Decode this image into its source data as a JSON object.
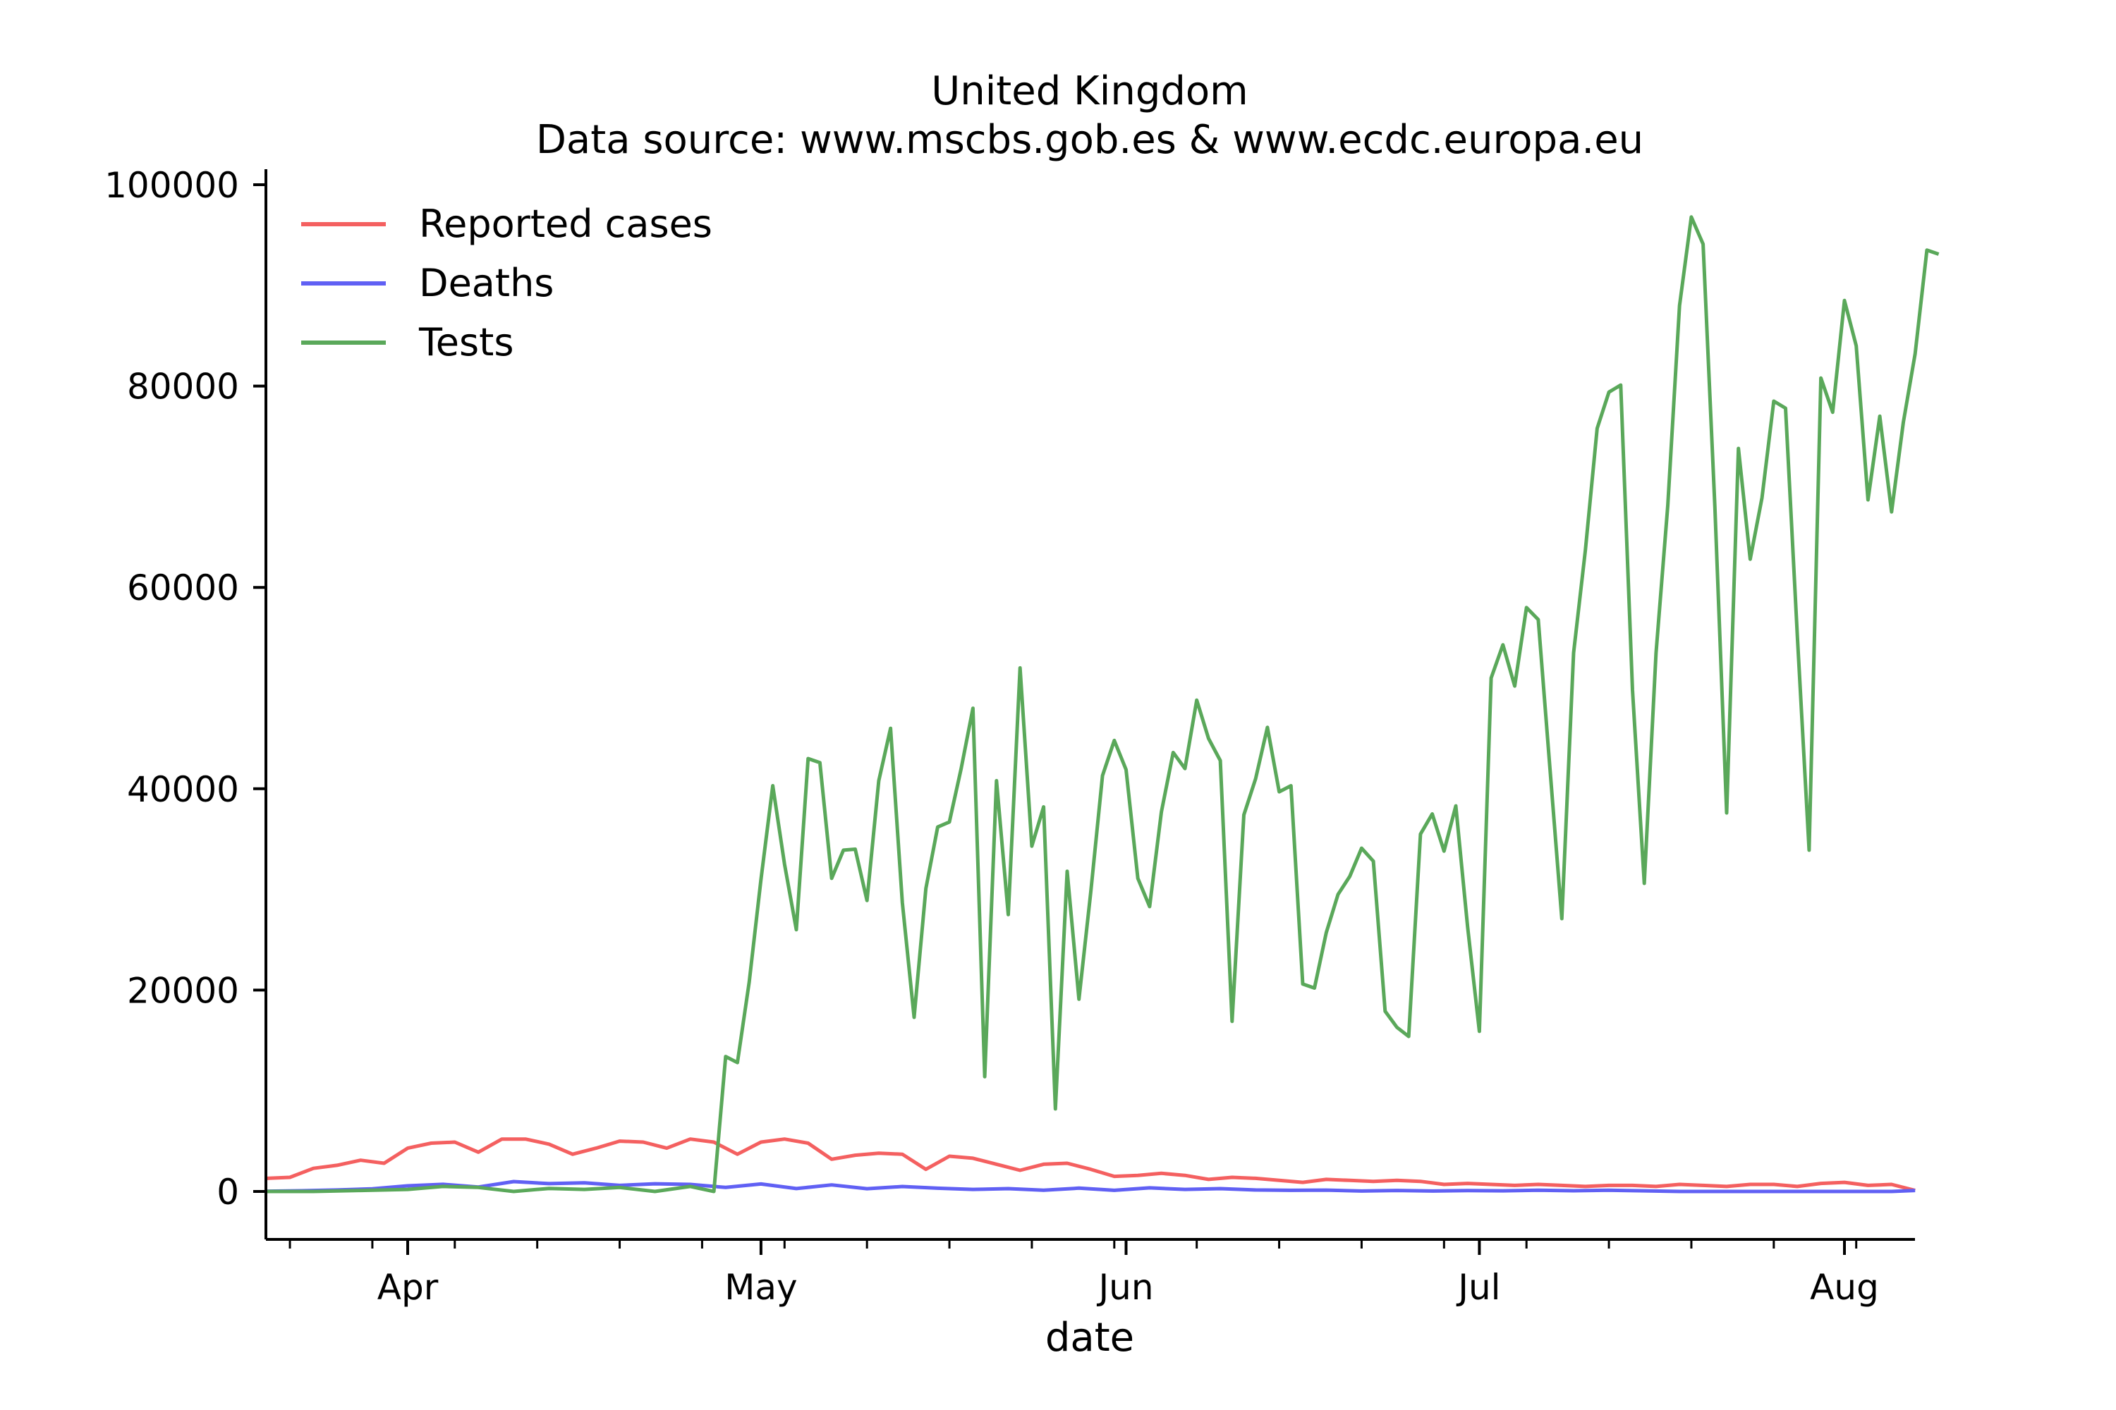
{
  "chart_data": {
    "type": "line",
    "title": "United Kingdom",
    "subtitle": "Data source: www.mscbs.gob.es & www.ecdc.europa.eu",
    "xlabel": "date",
    "ylabel": "",
    "x_tick_labels": [
      "Apr",
      "May",
      "Jun",
      "Jul",
      "Aug"
    ],
    "x_tick_dates": [
      "2020-04-01",
      "2020-05-01",
      "2020-06-01",
      "2020-07-01",
      "2020-08-01"
    ],
    "x_range": [
      "2020-03-20",
      "2020-08-07"
    ],
    "y_ticks": [
      0,
      20000,
      40000,
      60000,
      80000,
      100000
    ],
    "y_tick_labels": [
      "0",
      "20000",
      "40000",
      "60000",
      "80000",
      "100000"
    ],
    "ylim": [
      -5000,
      101000
    ],
    "grid": false,
    "legend_position": "top-left",
    "series": [
      {
        "name": "Reported cases",
        "color": "#f46060",
        "points": [
          [
            "2020-03-20",
            1300
          ],
          [
            "2020-03-22",
            1400
          ],
          [
            "2020-03-24",
            2300
          ],
          [
            "2020-03-26",
            2600
          ],
          [
            "2020-03-28",
            3100
          ],
          [
            "2020-03-30",
            2800
          ],
          [
            "2020-04-01",
            4300
          ],
          [
            "2020-04-03",
            4800
          ],
          [
            "2020-04-05",
            4900
          ],
          [
            "2020-04-07",
            3900
          ],
          [
            "2020-04-09",
            5200
          ],
          [
            "2020-04-11",
            5200
          ],
          [
            "2020-04-13",
            4700
          ],
          [
            "2020-04-15",
            3700
          ],
          [
            "2020-04-17",
            4300
          ],
          [
            "2020-04-19",
            5000
          ],
          [
            "2020-04-21",
            4900
          ],
          [
            "2020-04-23",
            4300
          ],
          [
            "2020-04-25",
            5200
          ],
          [
            "2020-04-27",
            4900
          ],
          [
            "2020-04-29",
            3700
          ],
          [
            "2020-05-01",
            4900
          ],
          [
            "2020-05-03",
            5200
          ],
          [
            "2020-05-05",
            4800
          ],
          [
            "2020-05-07",
            3200
          ],
          [
            "2020-05-09",
            3600
          ],
          [
            "2020-05-11",
            3800
          ],
          [
            "2020-05-13",
            3700
          ],
          [
            "2020-05-15",
            2200
          ],
          [
            "2020-05-17",
            3500
          ],
          [
            "2020-05-19",
            3300
          ],
          [
            "2020-05-21",
            2700
          ],
          [
            "2020-05-23",
            2100
          ],
          [
            "2020-05-25",
            2700
          ],
          [
            "2020-05-27",
            2800
          ],
          [
            "2020-05-29",
            2200
          ],
          [
            "2020-05-31",
            1500
          ],
          [
            "2020-06-02",
            1600
          ],
          [
            "2020-06-04",
            1800
          ],
          [
            "2020-06-06",
            1600
          ],
          [
            "2020-06-08",
            1200
          ],
          [
            "2020-06-10",
            1400
          ],
          [
            "2020-06-12",
            1300
          ],
          [
            "2020-06-14",
            1100
          ],
          [
            "2020-06-16",
            900
          ],
          [
            "2020-06-18",
            1200
          ],
          [
            "2020-06-20",
            1100
          ],
          [
            "2020-06-22",
            1000
          ],
          [
            "2020-06-24",
            1100
          ],
          [
            "2020-06-26",
            1000
          ],
          [
            "2020-06-28",
            700
          ],
          [
            "2020-06-30",
            800
          ],
          [
            "2020-07-02",
            700
          ],
          [
            "2020-07-04",
            600
          ],
          [
            "2020-07-06",
            700
          ],
          [
            "2020-07-08",
            600
          ],
          [
            "2020-07-10",
            500
          ],
          [
            "2020-07-12",
            600
          ],
          [
            "2020-07-14",
            600
          ],
          [
            "2020-07-16",
            500
          ],
          [
            "2020-07-18",
            700
          ],
          [
            "2020-07-20",
            600
          ],
          [
            "2020-07-22",
            500
          ],
          [
            "2020-07-24",
            700
          ],
          [
            "2020-07-26",
            700
          ],
          [
            "2020-07-28",
            500
          ],
          [
            "2020-07-30",
            800
          ],
          [
            "2020-08-01",
            900
          ],
          [
            "2020-08-03",
            600
          ],
          [
            "2020-08-05",
            700
          ],
          [
            "2020-08-07",
            100
          ]
        ]
      },
      {
        "name": "Deaths",
        "color": "#6060f4",
        "points": [
          [
            "2020-03-20",
            20
          ],
          [
            "2020-03-23",
            70
          ],
          [
            "2020-03-26",
            150
          ],
          [
            "2020-03-29",
            260
          ],
          [
            "2020-04-01",
            560
          ],
          [
            "2020-04-04",
            710
          ],
          [
            "2020-04-07",
            440
          ],
          [
            "2020-04-10",
            980
          ],
          [
            "2020-04-13",
            780
          ],
          [
            "2020-04-16",
            860
          ],
          [
            "2020-04-19",
            600
          ],
          [
            "2020-04-22",
            760
          ],
          [
            "2020-04-25",
            700
          ],
          [
            "2020-04-28",
            400
          ],
          [
            "2020-05-01",
            740
          ],
          [
            "2020-05-04",
            290
          ],
          [
            "2020-05-07",
            650
          ],
          [
            "2020-05-10",
            270
          ],
          [
            "2020-05-13",
            490
          ],
          [
            "2020-05-16",
            320
          ],
          [
            "2020-05-19",
            200
          ],
          [
            "2020-05-22",
            280
          ],
          [
            "2020-05-25",
            120
          ],
          [
            "2020-05-28",
            330
          ],
          [
            "2020-05-31",
            113
          ],
          [
            "2020-06-03",
            360
          ],
          [
            "2020-06-06",
            200
          ],
          [
            "2020-06-09",
            280
          ],
          [
            "2020-06-12",
            150
          ],
          [
            "2020-06-15",
            110
          ],
          [
            "2020-06-18",
            130
          ],
          [
            "2020-06-21",
            40
          ],
          [
            "2020-06-24",
            100
          ],
          [
            "2020-06-27",
            40
          ],
          [
            "2020-06-30",
            90
          ],
          [
            "2020-07-03",
            60
          ],
          [
            "2020-07-06",
            120
          ],
          [
            "2020-07-09",
            70
          ],
          [
            "2020-07-12",
            120
          ],
          [
            "2020-07-15",
            60
          ],
          [
            "2020-07-18",
            0
          ],
          [
            "2020-07-21",
            0
          ],
          [
            "2020-07-24",
            0
          ],
          [
            "2020-07-27",
            0
          ],
          [
            "2020-07-30",
            0
          ],
          [
            "2020-08-02",
            0
          ],
          [
            "2020-08-05",
            0
          ],
          [
            "2020-08-07",
            100
          ]
        ]
      },
      {
        "name": "Tests",
        "color": "#5aa85a",
        "points": [
          [
            "2020-03-20",
            0
          ],
          [
            "2020-03-24",
            0
          ],
          [
            "2020-03-28",
            100
          ],
          [
            "2020-04-01",
            200
          ],
          [
            "2020-04-04",
            500
          ],
          [
            "2020-04-07",
            400
          ],
          [
            "2020-04-10",
            0
          ],
          [
            "2020-04-13",
            300
          ],
          [
            "2020-04-16",
            200
          ],
          [
            "2020-04-19",
            400
          ],
          [
            "2020-04-22",
            0
          ],
          [
            "2020-04-25",
            500
          ],
          [
            "2020-04-27",
            0
          ],
          [
            "2020-04-28",
            13400
          ],
          [
            "2020-04-29",
            12800
          ],
          [
            "2020-04-30",
            20800
          ],
          [
            "2020-05-01",
            31000
          ],
          [
            "2020-05-02",
            40300
          ],
          [
            "2020-05-03",
            32500
          ],
          [
            "2020-05-04",
            26000
          ],
          [
            "2020-05-05",
            43000
          ],
          [
            "2020-05-06",
            42600
          ],
          [
            "2020-05-07",
            31100
          ],
          [
            "2020-05-08",
            33900
          ],
          [
            "2020-05-09",
            34000
          ],
          [
            "2020-05-10",
            28900
          ],
          [
            "2020-05-11",
            40800
          ],
          [
            "2020-05-12",
            46000
          ],
          [
            "2020-05-13",
            28700
          ],
          [
            "2020-05-14",
            17300
          ],
          [
            "2020-05-15",
            30100
          ],
          [
            "2020-05-16",
            36200
          ],
          [
            "2020-05-17",
            36700
          ],
          [
            "2020-05-18",
            42000
          ],
          [
            "2020-05-19",
            48000
          ],
          [
            "2020-05-20",
            11400
          ],
          [
            "2020-05-21",
            40800
          ],
          [
            "2020-05-22",
            27500
          ],
          [
            "2020-05-23",
            52000
          ],
          [
            "2020-05-24",
            34300
          ],
          [
            "2020-05-25",
            38200
          ],
          [
            "2020-05-26",
            8200
          ],
          [
            "2020-05-27",
            31800
          ],
          [
            "2020-05-28",
            19100
          ],
          [
            "2020-05-29",
            29700
          ],
          [
            "2020-05-30",
            41300
          ],
          [
            "2020-05-31",
            44800
          ],
          [
            "2020-06-01",
            41900
          ],
          [
            "2020-06-02",
            31100
          ],
          [
            "2020-06-03",
            28300
          ],
          [
            "2020-06-04",
            37700
          ],
          [
            "2020-06-05",
            43600
          ],
          [
            "2020-06-06",
            42000
          ],
          [
            "2020-06-07",
            48800
          ],
          [
            "2020-06-08",
            45000
          ],
          [
            "2020-06-09",
            42800
          ],
          [
            "2020-06-10",
            16900
          ],
          [
            "2020-06-11",
            37400
          ],
          [
            "2020-06-12",
            41000
          ],
          [
            "2020-06-13",
            46100
          ],
          [
            "2020-06-14",
            39700
          ],
          [
            "2020-06-15",
            40300
          ],
          [
            "2020-06-16",
            20600
          ],
          [
            "2020-06-17",
            20200
          ],
          [
            "2020-06-18",
            25700
          ],
          [
            "2020-06-19",
            29500
          ],
          [
            "2020-06-20",
            31300
          ],
          [
            "2020-06-21",
            34100
          ],
          [
            "2020-06-22",
            32800
          ],
          [
            "2020-06-23",
            17900
          ],
          [
            "2020-06-24",
            16300
          ],
          [
            "2020-06-25",
            15400
          ],
          [
            "2020-06-26",
            35500
          ],
          [
            "2020-06-27",
            37500
          ],
          [
            "2020-06-28",
            33800
          ],
          [
            "2020-06-29",
            38300
          ],
          [
            "2020-06-30",
            26300
          ],
          [
            "2020-07-01",
            15900
          ],
          [
            "2020-07-02",
            51000
          ],
          [
            "2020-07-03",
            54300
          ],
          [
            "2020-07-04",
            50200
          ],
          [
            "2020-07-05",
            58000
          ],
          [
            "2020-07-06",
            56800
          ],
          [
            "2020-07-07",
            41900
          ],
          [
            "2020-07-08",
            27100
          ],
          [
            "2020-07-09",
            53500
          ],
          [
            "2020-07-10",
            63700
          ],
          [
            "2020-07-11",
            75800
          ],
          [
            "2020-07-12",
            79400
          ],
          [
            "2020-07-13",
            80100
          ],
          [
            "2020-07-14",
            49800
          ],
          [
            "2020-07-15",
            30600
          ],
          [
            "2020-07-16",
            53500
          ],
          [
            "2020-07-17",
            68100
          ],
          [
            "2020-07-18",
            88000
          ],
          [
            "2020-07-19",
            96800
          ],
          [
            "2020-07-20",
            94100
          ],
          [
            "2020-07-21",
            68000
          ],
          [
            "2020-07-22",
            37600
          ],
          [
            "2020-07-23",
            73800
          ],
          [
            "2020-07-24",
            62800
          ],
          [
            "2020-07-25",
            68900
          ],
          [
            "2020-07-26",
            78500
          ],
          [
            "2020-07-27",
            77800
          ],
          [
            "2020-07-28",
            55200
          ],
          [
            "2020-07-29",
            33900
          ],
          [
            "2020-07-30",
            80800
          ],
          [
            "2020-07-31",
            77400
          ],
          [
            "2020-08-01",
            88500
          ],
          [
            "2020-08-02",
            84000
          ],
          [
            "2020-08-03",
            68700
          ],
          [
            "2020-08-04",
            77000
          ],
          [
            "2020-08-05",
            67500
          ],
          [
            "2020-08-06",
            76400
          ],
          [
            "2020-08-07",
            83200
          ],
          [
            "2020-08-08",
            93500
          ],
          [
            "2020-08-09",
            93100
          ]
        ]
      }
    ]
  }
}
